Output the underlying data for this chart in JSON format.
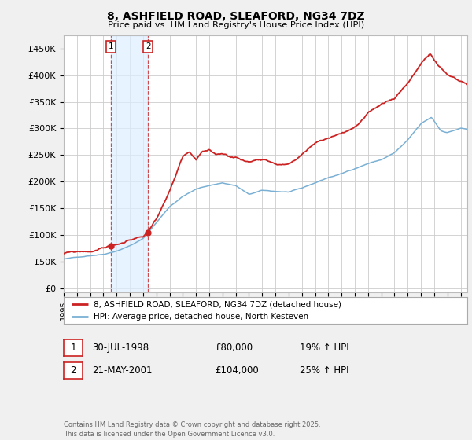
{
  "title1": "8, ASHFIELD ROAD, SLEAFORD, NG34 7DZ",
  "title2": "Price paid vs. HM Land Registry's House Price Index (HPI)",
  "yticks": [
    0,
    50000,
    100000,
    150000,
    200000,
    250000,
    300000,
    350000,
    400000,
    450000
  ],
  "ytick_labels": [
    "£0",
    "£50K",
    "£100K",
    "£150K",
    "£200K",
    "£250K",
    "£300K",
    "£350K",
    "£400K",
    "£450K"
  ],
  "ylim": [
    -8000,
    475000
  ],
  "xlim_start": 1995.0,
  "xlim_end": 2025.5,
  "line1_color": "#cc2222",
  "line2_color": "#7ab0d4",
  "legend1": "8, ASHFIELD ROAD, SLEAFORD, NG34 7DZ (detached house)",
  "legend2": "HPI: Average price, detached house, North Kesteven",
  "sale1_x": 1998.58,
  "sale1_y": 80000,
  "sale2_x": 2001.38,
  "sale2_y": 104000,
  "annotation1_label": "1",
  "annotation2_label": "2",
  "footer": "Contains HM Land Registry data © Crown copyright and database right 2025.\nThis data is licensed under the Open Government Licence v3.0.",
  "table_row1": [
    "1",
    "30-JUL-1998",
    "£80,000",
    "19% ↑ HPI"
  ],
  "table_row2": [
    "2",
    "21-MAY-2001",
    "£104,000",
    "25% ↑ HPI"
  ],
  "background_color": "#f0f0f0",
  "plot_bg_color": "#ffffff",
  "grid_color": "#cccccc",
  "shade_color": "#ddeeff"
}
